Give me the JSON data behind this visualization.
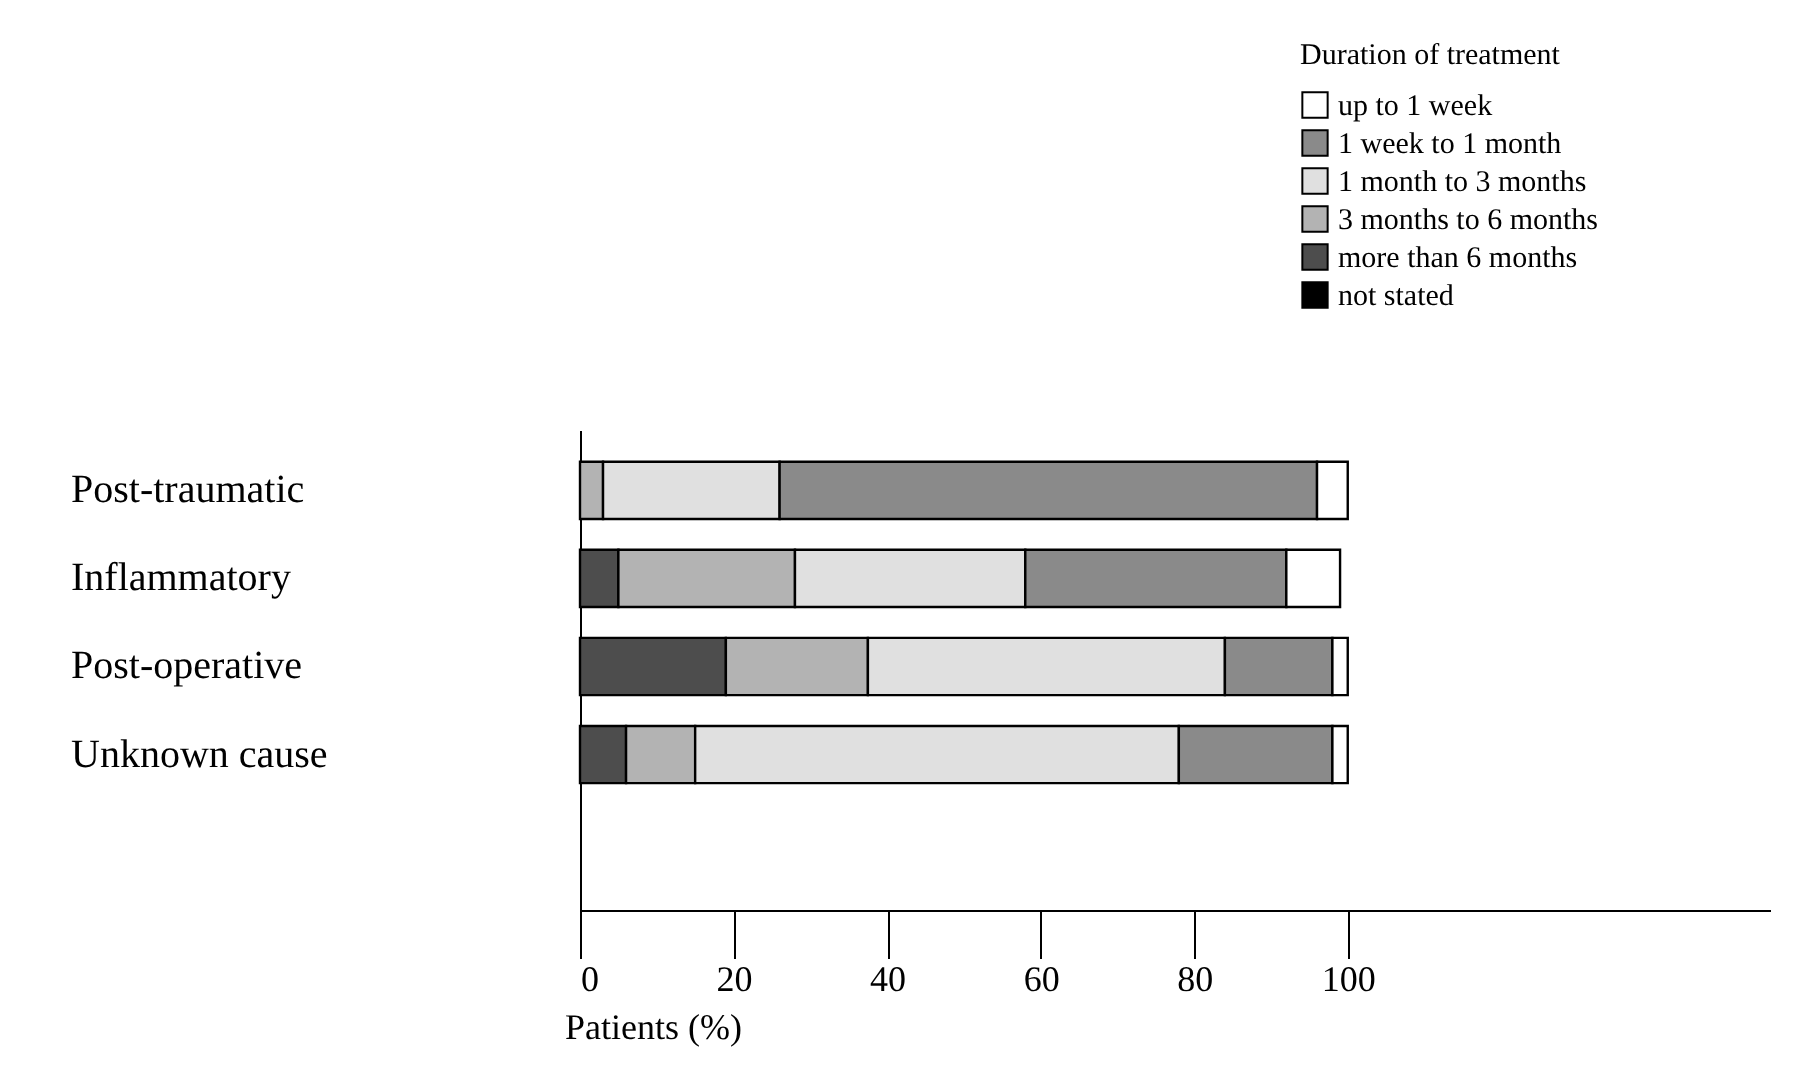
{
  "chart_data": {
    "type": "bar",
    "orientation": "horizontal",
    "stacked": true,
    "categories": [
      "Post-traumatic",
      "Inflammatory",
      "Post-operative",
      "Unknown cause"
    ],
    "xlabel": "Patients (%)",
    "legend_title": "Duration of treatment",
    "legend": "top right",
    "xlim": [
      0,
      155
    ],
    "xticks": [
      0,
      20,
      40,
      60,
      80,
      100
    ],
    "series": [
      {
        "name": "not stated",
        "color": "#000000",
        "values": [
          null,
          null,
          null,
          null
        ]
      },
      {
        "name": "more than 6 months",
        "color": "#4d4d4d",
        "values": [
          null,
          5,
          19,
          6
        ]
      },
      {
        "name": "3 months to 6 months",
        "color": "#b3b3b3",
        "values": [
          3,
          23,
          18.5,
          9
        ]
      },
      {
        "name": "1 month to 3 months",
        "color": "#e0e0e0",
        "values": [
          23,
          30,
          46.5,
          63
        ]
      },
      {
        "name": "1 week to 1 month",
        "color": "#8a8a8a",
        "values": [
          70,
          34,
          14,
          20
        ]
      },
      {
        "name": "up to 1 week",
        "color": "#ffffff",
        "values": [
          4,
          7,
          2,
          2
        ]
      }
    ]
  }
}
